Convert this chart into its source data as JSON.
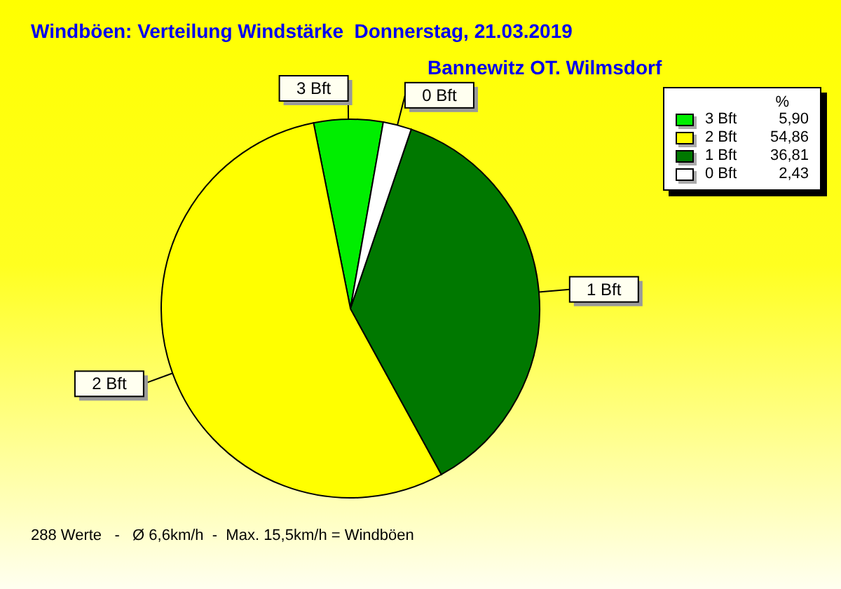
{
  "chart_data": {
    "type": "pie",
    "title": "Windböen: Verteilung Windstärke  Donnerstag, 21.03.2019",
    "subtitle": "Bannewitz OT. Wilmsdorf",
    "legend_title": "%",
    "categories": [
      "3 Bft",
      "2 Bft",
      "1 Bft",
      "0 Bft"
    ],
    "values": [
      5.9,
      54.86,
      36.81,
      2.43
    ],
    "value_labels": [
      "5,90",
      "54,86",
      "36,81",
      "2,43"
    ],
    "colors": [
      "#00ee00",
      "#ffff00",
      "#007800",
      "#ffffff"
    ],
    "legend": "top right",
    "annotations": [
      "288 Werte   -   Ø 6,6km/h  -  Max. 15,5km/h = Windböen"
    ]
  }
}
